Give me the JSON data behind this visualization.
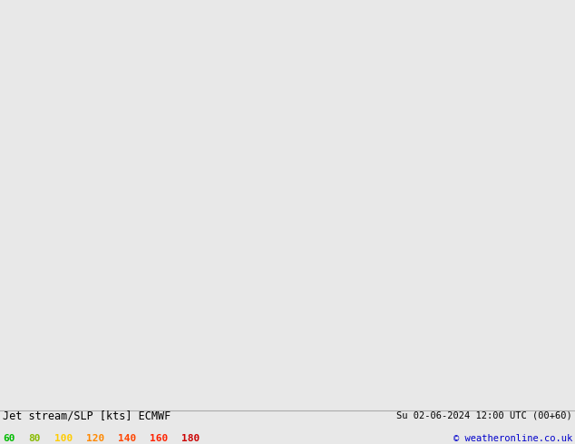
{
  "title_left": "Jet stream/SLP [kts] ECMWF",
  "title_right": "Su 02-06-2024 12:00 UTC (00+60)",
  "copyright": "© weatheronline.co.uk",
  "legend_values": [
    "60",
    "80",
    "100",
    "120",
    "140",
    "160",
    "180"
  ],
  "legend_colors": [
    "#00bb00",
    "#88bb00",
    "#ffcc00",
    "#ff8800",
    "#ff4400",
    "#ff2200",
    "#cc0000"
  ],
  "bg_color": "#e8e8e8",
  "sea_color": "#d8dce0",
  "land_color": "#b8d8b0",
  "jet_color_strong": "#44aa44",
  "jet_color_mid": "#88cc88",
  "jet_color_light": "#cceecc",
  "contour_color": "#ff0000",
  "coast_color": "#888888",
  "lon_min": -12.0,
  "lon_max": 8.0,
  "lat_min": 48.0,
  "lat_max": 62.0
}
